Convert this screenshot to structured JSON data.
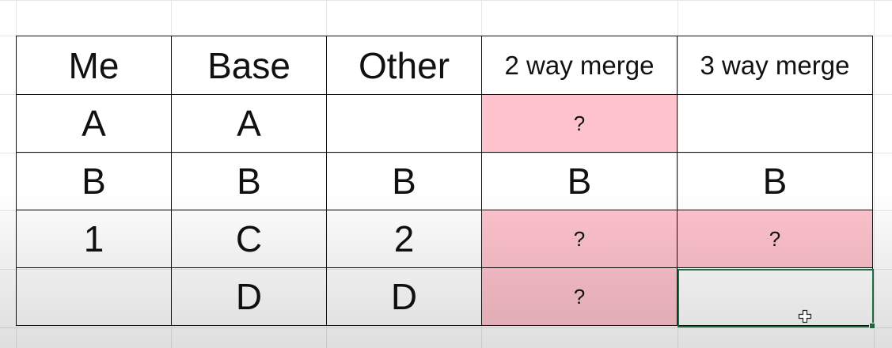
{
  "table": {
    "headers": [
      "Me",
      "Base",
      "Other",
      "2 way merge",
      "3 way merge"
    ],
    "rows": [
      [
        "A",
        "A",
        "",
        "?",
        ""
      ],
      [
        "B",
        "B",
        "B",
        "B",
        "B"
      ],
      [
        "1",
        "C",
        "2",
        "?",
        "?"
      ],
      [
        "",
        "D",
        "D",
        "?",
        ""
      ]
    ]
  },
  "colors": {
    "conflict_fill": "#ffc3cd",
    "question_mark": "#8a1010",
    "selection_border": "#217346"
  },
  "selected_cell": {
    "row": 4,
    "column": "3 way merge"
  },
  "icons": {
    "cursor": "excel-plus-cursor-icon"
  }
}
